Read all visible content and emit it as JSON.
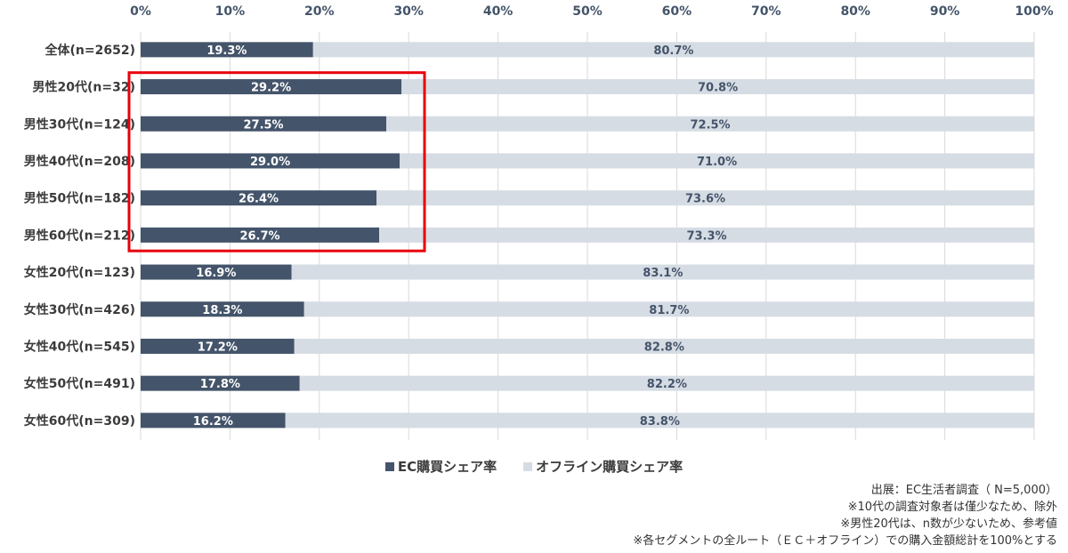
{
  "colors": {
    "ec": "#44546a",
    "offline": "#d6dce4",
    "highlight_box": "#e8000b",
    "grid": "#d9d9d9"
  },
  "chart_data": {
    "type": "bar",
    "orientation": "horizontal",
    "stacked": true,
    "title": "",
    "xlabel": "",
    "ylabel": "",
    "xlim": [
      0,
      100
    ],
    "x_ticks": [
      "0%",
      "10%",
      "20%",
      "30%",
      "40%",
      "50%",
      "60%",
      "70%",
      "80%",
      "90%",
      "100%"
    ],
    "grid": true,
    "legend_position": "bottom",
    "categories": [
      "全体(n=2652)",
      "男性20代(n=32)",
      "男性30代(n=124)",
      "男性40代(n=208)",
      "男性50代(n=182)",
      "男性60代(n=212)",
      "女性20代(n=123)",
      "女性30代(n=426)",
      "女性40代(n=545)",
      "女性50代(n=491)",
      "女性60代(n=309)"
    ],
    "series": [
      {
        "name": "EC購買シェア率",
        "values": [
          19.3,
          29.2,
          27.5,
          29.0,
          26.4,
          26.7,
          16.9,
          18.3,
          17.2,
          17.8,
          16.2
        ],
        "labels": [
          "19.3%",
          "29.2%",
          "27.5%",
          "29.0%",
          "26.4%",
          "26.7%",
          "16.9%",
          "18.3%",
          "17.2%",
          "17.8%",
          "16.2%"
        ]
      },
      {
        "name": "オフライン購買シェア率",
        "values": [
          80.7,
          70.8,
          72.5,
          71.0,
          73.6,
          73.3,
          83.1,
          81.7,
          82.8,
          82.2,
          83.8
        ],
        "labels": [
          "80.7%",
          "70.8%",
          "72.5%",
          "71.0%",
          "73.6%",
          "73.3%",
          "83.1%",
          "81.7%",
          "82.8%",
          "82.2%",
          "83.8%"
        ]
      }
    ],
    "highlighted_categories": [
      "男性20代(n=32)",
      "男性30代(n=124)",
      "男性40代(n=208)",
      "男性50代(n=182)",
      "男性60代(n=212)"
    ]
  },
  "notes": {
    "source": "出展：EC生活者調査（ N=5,000）",
    "note1": "※10代の調査対象者は僅少なため、除外",
    "note2": "※男性20代は、n数が少ないため、参考値",
    "note3": "※各セグメントの全ルート（ＥＣ＋オフライン）での購入金額総計を100%とする"
  }
}
